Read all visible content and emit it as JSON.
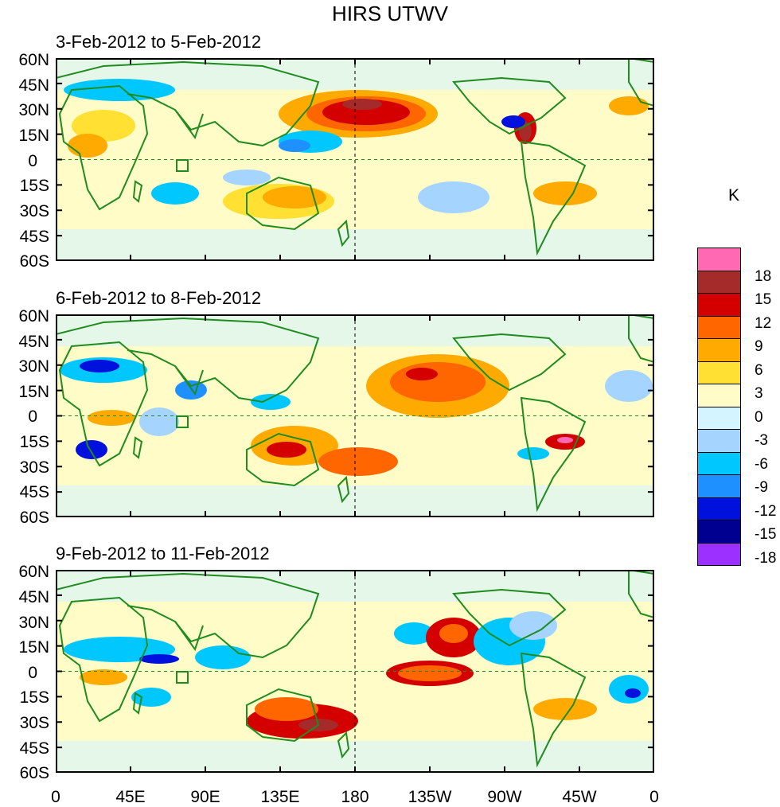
{
  "title": "HIRS UTWV",
  "unit_label": "K",
  "panels": [
    {
      "label": "3-Feb-2012 to 5-Feb-2012"
    },
    {
      "label": "6-Feb-2012 to 8-Feb-2012"
    },
    {
      "label": "9-Feb-2012 to 11-Feb-2012"
    }
  ],
  "lat_labels": [
    "60N",
    "45N",
    "30N",
    "15N",
    "0",
    "15S",
    "30S",
    "45S",
    "60S"
  ],
  "lon_labels": [
    "0",
    "45E",
    "90E",
    "135E",
    "180",
    "135W",
    "90W",
    "45W",
    "0"
  ],
  "colorbar": {
    "colors": [
      "#ff69b4",
      "#a52a2a",
      "#d40000",
      "#ff6600",
      "#ffaa00",
      "#ffe033",
      "#fffcc8",
      "#d4f4ff",
      "#a4d4ff",
      "#00c8ff",
      "#1e90ff",
      "#0010dd",
      "#000090",
      "#9b30ff"
    ],
    "levels": [
      "18",
      "15",
      "12",
      "9",
      "6",
      "3",
      "0",
      "-3",
      "-6",
      "-9",
      "-12",
      "-15",
      "-18"
    ]
  }
}
